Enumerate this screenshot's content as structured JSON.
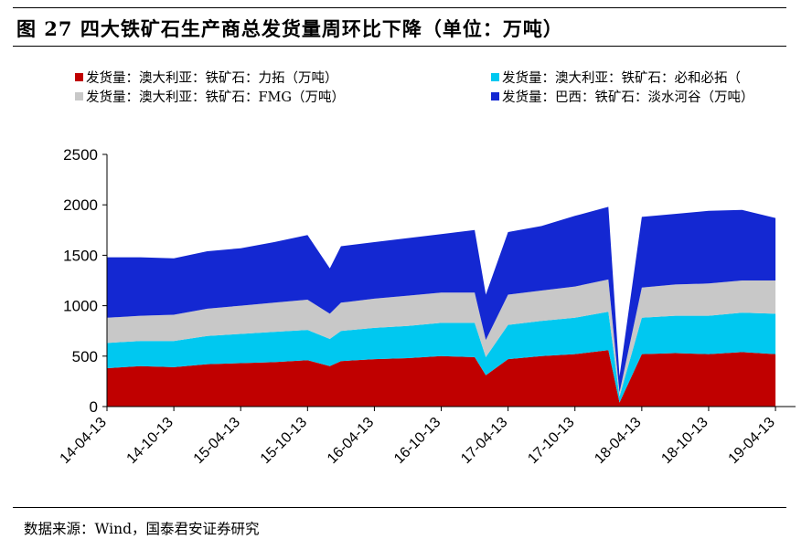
{
  "header": {
    "title": "图 27 四大铁矿石生产商总发货量周环比下降（单位：万吨）"
  },
  "legend": [
    {
      "label": "发货量：澳大利亚：铁矿石：力拓（万吨）",
      "color": "#c00000"
    },
    {
      "label": "发货量：澳大利亚：铁矿石：必和必拓（",
      "color": "#00c8f0"
    },
    {
      "label": "发货量：澳大利亚：铁矿石：FMG（万吨）",
      "color": "#c8c8c8"
    },
    {
      "label": "发货量：巴西：铁矿石：淡水河谷（万吨）",
      "color": "#1428d2"
    }
  ],
  "footer": {
    "source": "数据来源：Wind，国泰君安证券研究"
  },
  "chart_data": {
    "type": "area",
    "stacked": true,
    "x_ticks": [
      "14-04-13",
      "14-10-13",
      "15-04-13",
      "15-10-13",
      "16-04-13",
      "16-10-13",
      "17-04-13",
      "17-10-13",
      "18-04-13",
      "18-10-13",
      "19-04-13"
    ],
    "y_ticks": [
      "0",
      "500",
      "1000",
      "1500",
      "2000",
      "2500"
    ],
    "ylim": [
      0,
      2500
    ],
    "x": [
      "14-04-13",
      "14-07-13",
      "14-10-13",
      "15-01-13",
      "15-04-13",
      "15-07-13",
      "15-10-13",
      "15-12-13",
      "16-01-13",
      "16-04-13",
      "16-07-13",
      "16-10-13",
      "17-01-13",
      "17-02-13",
      "17-04-13",
      "17-07-13",
      "17-10-13",
      "18-01-13",
      "18-02-13",
      "18-04-13",
      "18-07-13",
      "18-10-13",
      "19-01-13",
      "19-04-13"
    ],
    "series": [
      {
        "name": "发货量：澳大利亚：铁矿石：力拓（万吨）",
        "values": [
          380,
          400,
          390,
          420,
          430,
          440,
          460,
          400,
          450,
          470,
          480,
          500,
          490,
          310,
          470,
          500,
          520,
          560,
          40,
          520,
          530,
          520,
          540,
          520
        ]
      },
      {
        "name": "发货量：澳大利亚：铁矿石：必和必拓（",
        "values": [
          250,
          250,
          260,
          280,
          290,
          300,
          300,
          270,
          300,
          310,
          320,
          330,
          340,
          180,
          340,
          350,
          360,
          380,
          60,
          360,
          370,
          380,
          390,
          400
        ]
      },
      {
        "name": "发货量：澳大利亚：铁矿石：FMG（万吨）",
        "values": [
          250,
          250,
          260,
          270,
          280,
          290,
          300,
          250,
          280,
          290,
          300,
          300,
          300,
          170,
          300,
          300,
          310,
          320,
          40,
          300,
          310,
          320,
          320,
          330
        ]
      },
      {
        "name": "发货量：巴西：铁矿石：淡水河谷（万吨）",
        "values": [
          600,
          580,
          560,
          570,
          570,
          600,
          640,
          450,
          560,
          560,
          570,
          580,
          620,
          450,
          620,
          640,
          700,
          720,
          160,
          700,
          700,
          720,
          700,
          620
        ]
      }
    ],
    "grid": false,
    "legend_position": "top"
  }
}
